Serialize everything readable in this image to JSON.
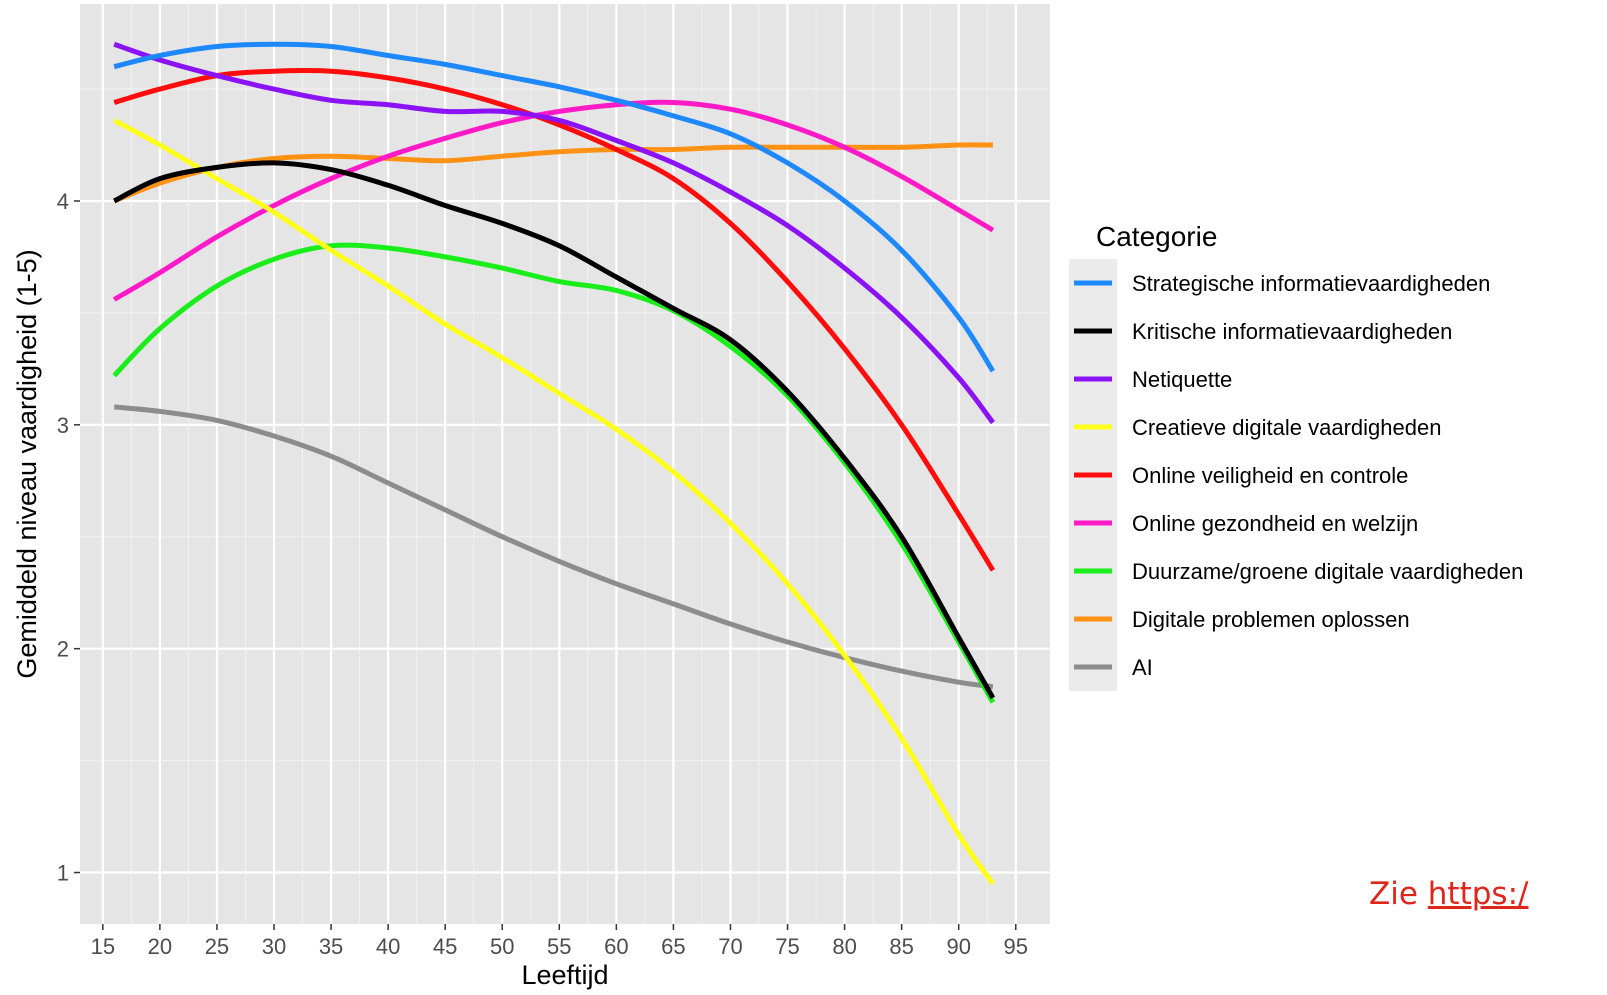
{
  "chart_data": {
    "type": "line",
    "xlabel": "Leeftijd",
    "ylabel": "Gemiddeld niveau vaardigheid (1-5)",
    "xlim": [
      13,
      98
    ],
    "ylim": [
      0.77,
      4.88
    ],
    "x_ticks": [
      15,
      20,
      25,
      30,
      35,
      40,
      45,
      50,
      55,
      60,
      65,
      70,
      75,
      80,
      85,
      90,
      95
    ],
    "y_ticks": [
      1,
      2,
      3,
      4
    ],
    "grid": true,
    "legend_title": "Categorie",
    "legend_position": "right",
    "x": [
      16,
      20,
      25,
      30,
      35,
      40,
      45,
      50,
      55,
      60,
      65,
      70,
      75,
      80,
      85,
      90,
      93
    ],
    "series": [
      {
        "name": "Strategische informatievaardigheden",
        "color": "#1e88ff",
        "values": [
          4.6,
          4.65,
          4.69,
          4.7,
          4.69,
          4.65,
          4.61,
          4.56,
          4.51,
          4.45,
          4.38,
          4.3,
          4.17,
          4.0,
          3.78,
          3.48,
          3.24
        ]
      },
      {
        "name": "Kritische informatievaardigheden",
        "color": "#000000",
        "values": [
          4.0,
          4.1,
          4.15,
          4.17,
          4.14,
          4.07,
          3.98,
          3.9,
          3.8,
          3.66,
          3.52,
          3.38,
          3.15,
          2.85,
          2.5,
          2.05,
          1.78
        ]
      },
      {
        "name": "Netiquette",
        "color": "#8a12f5",
        "values": [
          4.7,
          4.63,
          4.56,
          4.5,
          4.45,
          4.43,
          4.4,
          4.4,
          4.36,
          4.27,
          4.17,
          4.04,
          3.89,
          3.7,
          3.48,
          3.21,
          3.01
        ]
      },
      {
        "name": "Creatieve digitale vaardigheden",
        "color": "#ffff1a",
        "values": [
          4.36,
          4.25,
          4.1,
          3.95,
          3.78,
          3.62,
          3.45,
          3.3,
          3.14,
          2.98,
          2.79,
          2.56,
          2.29,
          1.97,
          1.6,
          1.17,
          0.95
        ]
      },
      {
        "name": "Online veiligheid en controle",
        "color": "#ff0d0d",
        "values": [
          4.44,
          4.5,
          4.56,
          4.58,
          4.58,
          4.55,
          4.5,
          4.43,
          4.34,
          4.23,
          4.1,
          3.9,
          3.64,
          3.34,
          3.0,
          2.6,
          2.35
        ]
      },
      {
        "name": "Online gezondheid en welzijn",
        "color": "#ff1ac8",
        "values": [
          3.56,
          3.68,
          3.84,
          3.98,
          4.1,
          4.2,
          4.28,
          4.35,
          4.4,
          4.43,
          4.44,
          4.41,
          4.34,
          4.24,
          4.11,
          3.96,
          3.87
        ]
      },
      {
        "name": "Duurzame/groene digitale vaardigheden",
        "color": "#1aee1a",
        "values": [
          3.22,
          3.43,
          3.62,
          3.74,
          3.8,
          3.79,
          3.75,
          3.7,
          3.64,
          3.6,
          3.51,
          3.35,
          3.13,
          2.83,
          2.47,
          2.03,
          1.76
        ]
      },
      {
        "name": "Digitale problemen oplossen",
        "color": "#ff9214",
        "values": [
          4.0,
          4.08,
          4.15,
          4.19,
          4.2,
          4.19,
          4.18,
          4.2,
          4.22,
          4.23,
          4.23,
          4.24,
          4.24,
          4.24,
          4.24,
          4.25,
          4.25
        ]
      },
      {
        "name": "AI",
        "color": "#8c8c8c",
        "values": [
          3.08,
          3.06,
          3.02,
          2.95,
          2.86,
          2.74,
          2.62,
          2.5,
          2.39,
          2.29,
          2.2,
          2.11,
          2.03,
          1.96,
          1.9,
          1.85,
          1.83
        ]
      }
    ]
  },
  "note": {
    "prefix": "Zie ",
    "link": "https:/"
  }
}
